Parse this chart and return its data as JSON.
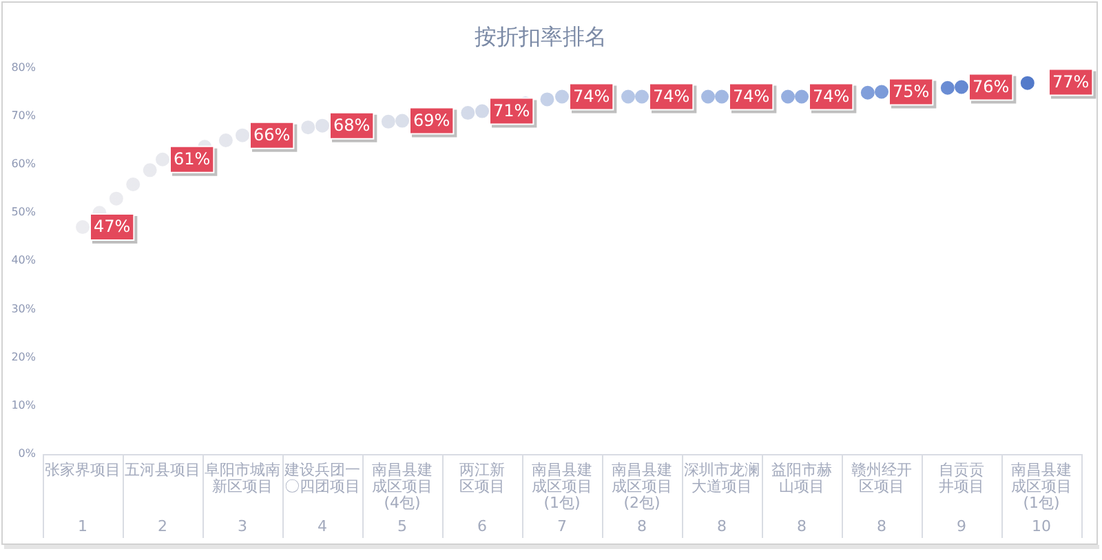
{
  "chart_data": {
    "type": "line",
    "title": "按折扣率排名",
    "categories": [
      "张家界项目\n1",
      "五河县项目\n2",
      "阜阳市城南新区项目\n3",
      "建设兵团一〇四团项目\n4",
      "南昌县建成区项目(4包)\n5",
      "两江新区项目\n6",
      "南昌县建成区项目(1包)\n7",
      "南昌县建成区项目(2包)\n8",
      "深圳市龙澜大道项目\n8",
      "益阳市赫山项目\n8",
      "赣州经开区项目\n8",
      "自贡贡井项目\n9",
      "南昌县建成区项目(1包)\n10"
    ],
    "series": [
      {
        "colors": [
          "#ececf0",
          "#e8e9ee",
          "#e4e6ed",
          "#e0e3ec",
          "#dadfea",
          "#d2d9e9",
          "#c2cfe8",
          "#b2c4e6",
          "#a2b8e2",
          "#92acdf",
          "#7c9bd9",
          "#6689d2",
          "#4f77c8"
        ],
        "values": [
          47,
          61,
          66,
          68,
          69,
          71,
          74,
          74,
          74,
          74,
          75,
          76,
          77
        ],
        "value_labels": [
          "47%",
          "61%",
          "66%",
          "68%",
          "69%",
          "71%",
          "74%",
          "74%",
          "74%",
          "74%",
          "75%",
          "76%",
          "77%"
        ]
      }
    ],
    "ylim": [
      0,
      80
    ],
    "yticks": [
      {
        "value": 0,
        "label": "0%"
      },
      {
        "value": 10,
        "label": "10%"
      },
      {
        "value": 20,
        "label": "20%"
      },
      {
        "value": 30,
        "label": "30%"
      },
      {
        "value": 40,
        "label": "40%"
      },
      {
        "value": 50,
        "label": "50%"
      },
      {
        "value": 60,
        "label": "60%"
      },
      {
        "value": 70,
        "label": "70%"
      },
      {
        "value": 80,
        "label": "80%"
      }
    ],
    "line_style": "dotted"
  }
}
